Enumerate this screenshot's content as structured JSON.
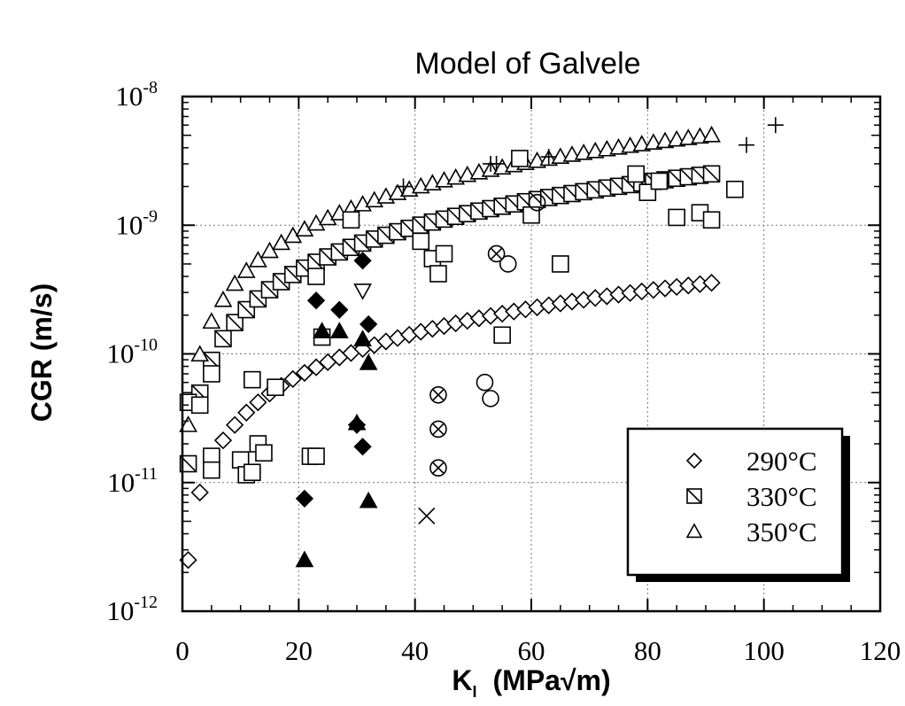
{
  "chart_data": {
    "type": "scatter",
    "title": "Model of Galvele",
    "xlabel_main": "K",
    "xlabel_sub": "I",
    "xlabel_units": "(MPa√m)",
    "ylabel": "CGR  (m/s)",
    "x_scale": "linear",
    "y_scale": "log",
    "xlim": [
      0,
      120
    ],
    "ylim": [
      1e-12,
      1e-08
    ],
    "x_ticks": [
      "0",
      "20",
      "40",
      "60",
      "80",
      "100",
      "120"
    ],
    "y_ticks": [
      {
        "base": "10",
        "exp": "-12",
        "value": 1e-12
      },
      {
        "base": "10",
        "exp": "-11",
        "value": 1e-11
      },
      {
        "base": "10",
        "exp": "-10",
        "value": 1e-10
      },
      {
        "base": "10",
        "exp": "-9",
        "value": 1e-09
      },
      {
        "base": "10",
        "exp": "-8",
        "value": 1e-08
      }
    ],
    "grid": true,
    "legend_position": "bottom-right",
    "legend": [
      {
        "label": "290°C",
        "marker": "diamond"
      },
      {
        "label": "330°C",
        "marker": "square-slash"
      },
      {
        "label": "350°C",
        "marker": "triangle"
      }
    ],
    "model_curves": [
      {
        "name": "290°C",
        "marker": "diamond",
        "x_start": 1,
        "x_end": 91,
        "step": 2,
        "y_at_1": 2.5e-12,
        "exponent": 1.1,
        "y_at_end": 3e-10
      },
      {
        "name": "330°C",
        "marker": "square-slash",
        "x_start": 1,
        "x_end": 91,
        "step": 2,
        "y_at_1": 1.4e-11,
        "exponent": 1.15,
        "y_at_end": 1.5e-09
      },
      {
        "name": "350°C",
        "marker": "triangle",
        "x_start": 1,
        "x_end": 91,
        "step": 2,
        "y_at_1": 2.8e-11,
        "exponent": 1.15,
        "y_at_end": 3e-09
      }
    ],
    "experimental_points": [
      {
        "marker": "open-square",
        "points": [
          [
            1,
            4.2e-11
          ],
          [
            3,
            4e-11
          ],
          [
            5,
            7e-11
          ],
          [
            5,
            1.6e-11
          ],
          [
            5,
            1.25e-11
          ],
          [
            10,
            1.5e-11
          ],
          [
            11,
            1.15e-11
          ],
          [
            12,
            1.2e-11
          ],
          [
            12,
            6.3e-11
          ],
          [
            13,
            2e-11
          ],
          [
            14,
            1.7e-11
          ],
          [
            16,
            5.5e-11
          ],
          [
            22,
            1.6e-11
          ],
          [
            23,
            1.6e-11
          ],
          [
            23,
            4e-10
          ],
          [
            24,
            1.35e-10
          ],
          [
            29,
            1.1e-09
          ],
          [
            41,
            7.5e-10
          ],
          [
            43,
            5.5e-10
          ],
          [
            44,
            4.2e-10
          ],
          [
            45,
            6e-10
          ],
          [
            55,
            1.4e-10
          ],
          [
            58,
            3.3e-09
          ],
          [
            60,
            1.2e-09
          ],
          [
            65,
            5e-10
          ],
          [
            78,
            2.5e-09
          ],
          [
            80,
            1.8e-09
          ],
          [
            82,
            2.2e-09
          ],
          [
            85,
            1.15e-09
          ],
          [
            89,
            1.25e-09
          ],
          [
            91,
            1.1e-09
          ],
          [
            95,
            1.9e-09
          ]
        ]
      },
      {
        "marker": "plus",
        "points": [
          [
            38,
            2e-09
          ],
          [
            53,
            3e-09
          ],
          [
            54,
            3e-09
          ],
          [
            63,
            3.4e-09
          ],
          [
            97,
            4.2e-09
          ],
          [
            102,
            6e-09
          ]
        ]
      },
      {
        "marker": "circle",
        "points": [
          [
            52,
            6e-11
          ],
          [
            53,
            4.5e-11
          ],
          [
            56,
            5e-10
          ],
          [
            61,
            1.5e-09
          ]
        ]
      },
      {
        "marker": "x",
        "points": [
          [
            42,
            5.5e-12
          ]
        ]
      },
      {
        "marker": "circle-x",
        "points": [
          [
            44,
            4.8e-11
          ],
          [
            44,
            2.6e-11
          ],
          [
            44,
            1.3e-11
          ],
          [
            54,
            6e-10
          ]
        ]
      },
      {
        "marker": "filled-diamond",
        "points": [
          [
            21,
            7.5e-12
          ],
          [
            23,
            2.6e-10
          ],
          [
            27,
            2.2e-10
          ],
          [
            30,
            2.8e-11
          ],
          [
            31,
            5.3e-10
          ],
          [
            31,
            1.9e-11
          ],
          [
            32,
            1.7e-10
          ]
        ]
      },
      {
        "marker": "filled-triangle",
        "points": [
          [
            21,
            2.5e-12
          ],
          [
            24,
            1.5e-10
          ],
          [
            27,
            1.5e-10
          ],
          [
            30,
            2.9e-11
          ],
          [
            31,
            1.3e-10
          ],
          [
            32,
            8.5e-11
          ],
          [
            32,
            7.2e-12
          ]
        ]
      },
      {
        "marker": "open-triangle-down",
        "points": [
          [
            31,
            3.1e-10
          ]
        ]
      }
    ]
  }
}
